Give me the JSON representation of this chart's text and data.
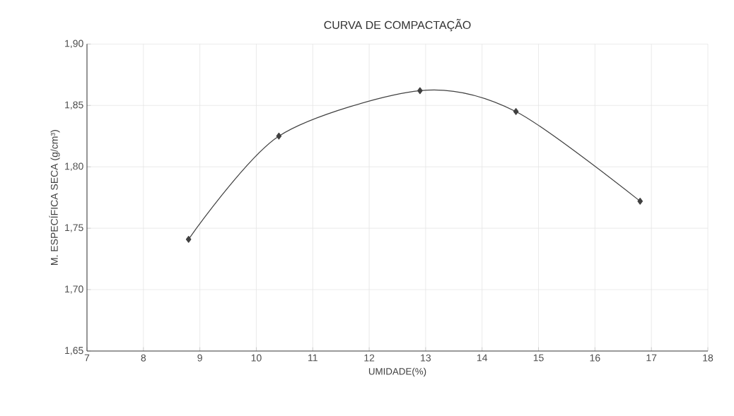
{
  "chart_data": {
    "type": "line",
    "title": "CURVA DE COMPACTAÇÃO",
    "xlabel": "UMIDADE(%)",
    "ylabel": "M. ESPECÍFICA SECA (g/cm³)",
    "x": [
      8.8,
      10.4,
      12.9,
      14.6,
      16.8
    ],
    "series": [
      {
        "color": "#404040",
        "values": [
          1.741,
          1.825,
          1.862,
          1.845,
          1.772
        ]
      }
    ],
    "xlim": [
      7,
      18
    ],
    "xticks": [
      7,
      8,
      9,
      10,
      11,
      12,
      13,
      14,
      15,
      16,
      17,
      18
    ],
    "ylim": [
      1.65,
      1.9
    ],
    "yticks": [
      {
        "value": 1.65,
        "label": "1,65"
      },
      {
        "value": 1.7,
        "label": "1,70"
      },
      {
        "value": 1.75,
        "label": "1,75"
      },
      {
        "value": 1.8,
        "label": "1,80"
      },
      {
        "value": 1.85,
        "label": "1,85"
      },
      {
        "value": 1.9,
        "label": "1,90"
      }
    ],
    "grid": true,
    "marker": "diamond",
    "line_style": "solid",
    "legend": false
  }
}
